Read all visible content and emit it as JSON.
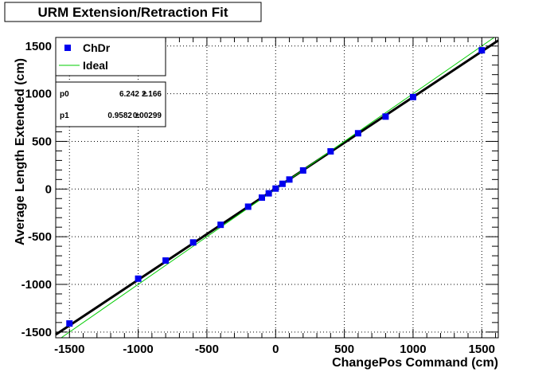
{
  "chart_data": {
    "type": "scatter",
    "title": "URM Extension/Retraction Fit",
    "xlabel": "ChangePos Command (cm)",
    "ylabel": "Average Length Extended (cm)",
    "xlim": [
      -1600,
      1620
    ],
    "ylim": [
      -1560,
      1590
    ],
    "x_ticks": [
      -1500,
      -1000,
      -500,
      0,
      500,
      1000,
      1500
    ],
    "y_ticks": [
      -1500,
      -1000,
      -500,
      0,
      500,
      1000,
      1500
    ],
    "grid": true,
    "legend_position": "top-left",
    "series": [
      {
        "name": "ChDr",
        "kind": "markers",
        "color": "#0000ee",
        "x": [
          -1500,
          -1000,
          -800,
          -600,
          -400,
          -200,
          -100,
          -50,
          0,
          50,
          100,
          200,
          400,
          600,
          800,
          1000,
          1500
        ],
        "y": [
          -1410,
          -940,
          -750,
          -560,
          -375,
          -185,
          -90,
          -45,
          5,
          55,
          100,
          195,
          395,
          585,
          760,
          965,
          1455
        ]
      },
      {
        "name": "Ideal",
        "kind": "line",
        "color": "#00cc00",
        "slope": 1,
        "intercept": 0
      },
      {
        "kind": "fit-line",
        "color": "#000000",
        "slope": 0.9582,
        "intercept": 6.242
      }
    ],
    "stats": [
      {
        "name": "p0",
        "value": "6.242",
        "pm": "±",
        "error": "2.166"
      },
      {
        "name": "p1",
        "value": "0.9582",
        "pm": "±",
        "error": "0.00299"
      }
    ]
  }
}
